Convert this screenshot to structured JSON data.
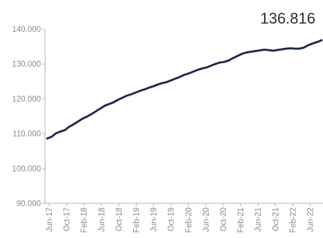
{
  "chart_data": {
    "type": "line",
    "title": "",
    "xlabel": "",
    "ylabel": "",
    "last_value_label": "136.816",
    "ylim": [
      90000,
      140000
    ],
    "y_ticks": [
      90000,
      100000,
      110000,
      120000,
      130000,
      140000
    ],
    "y_tick_labels": [
      "90.000",
      "100.000",
      "110.000",
      "120.000",
      "130.000",
      "140.000"
    ],
    "x_tick_labels": [
      "Jun-17",
      "Oct-17",
      "Feb-18",
      "Jun-18",
      "Oct-18",
      "Feb-19",
      "Jun-19",
      "Oct-19",
      "Feb-20",
      "Jun-20",
      "Oct-20",
      "Feb-21",
      "Jun-21",
      "Oct-21",
      "Feb-22",
      "Jun-22"
    ],
    "grid": false,
    "line_color": "#1f2a4d",
    "axis_color": "#b0b0b0",
    "series": [
      {
        "x": [
          "Jun-17",
          "Jul-17",
          "Aug-17",
          "Sep-17",
          "Oct-17",
          "Nov-17",
          "Dec-17",
          "Jan-18",
          "Feb-18",
          "Mar-18",
          "Apr-18",
          "May-18",
          "Jun-18",
          "Jul-18",
          "Aug-18",
          "Sep-18",
          "Oct-18",
          "Nov-18",
          "Dec-18",
          "Jan-19",
          "Feb-19",
          "Mar-19",
          "Apr-19",
          "May-19",
          "Jun-19",
          "Jul-19",
          "Aug-19",
          "Sep-19",
          "Oct-19",
          "Nov-19",
          "Dec-19",
          "Jan-20",
          "Feb-20",
          "Mar-20",
          "Apr-20",
          "May-20",
          "Jun-20",
          "Jul-20",
          "Aug-20",
          "Sep-20",
          "Oct-20",
          "Nov-20",
          "Dec-20",
          "Jan-21",
          "Feb-21",
          "Mar-21",
          "Apr-21",
          "May-21",
          "Jun-21",
          "Jul-21",
          "Aug-21",
          "Sep-21",
          "Oct-21",
          "Nov-21",
          "Dec-21",
          "Jan-22",
          "Feb-22",
          "Mar-22",
          "Apr-22",
          "May-22",
          "Jun-22",
          "Jul-22",
          "Aug-22"
        ],
        "values": [
          108600,
          109100,
          110100,
          110600,
          111000,
          112000,
          112700,
          113500,
          114300,
          114900,
          115600,
          116400,
          117200,
          118000,
          118500,
          119000,
          119700,
          120300,
          120900,
          121300,
          121800,
          122300,
          122700,
          123200,
          123600,
          124100,
          124500,
          124800,
          125300,
          125800,
          126300,
          126900,
          127300,
          127800,
          128300,
          128700,
          129000,
          129500,
          130000,
          130400,
          130600,
          131000,
          131700,
          132300,
          132900,
          133300,
          133500,
          133700,
          133900,
          134100,
          134000,
          133800,
          134000,
          134200,
          134400,
          134500,
          134400,
          134400,
          134700,
          135400,
          135900,
          136300,
          136816
        ]
      }
    ]
  }
}
